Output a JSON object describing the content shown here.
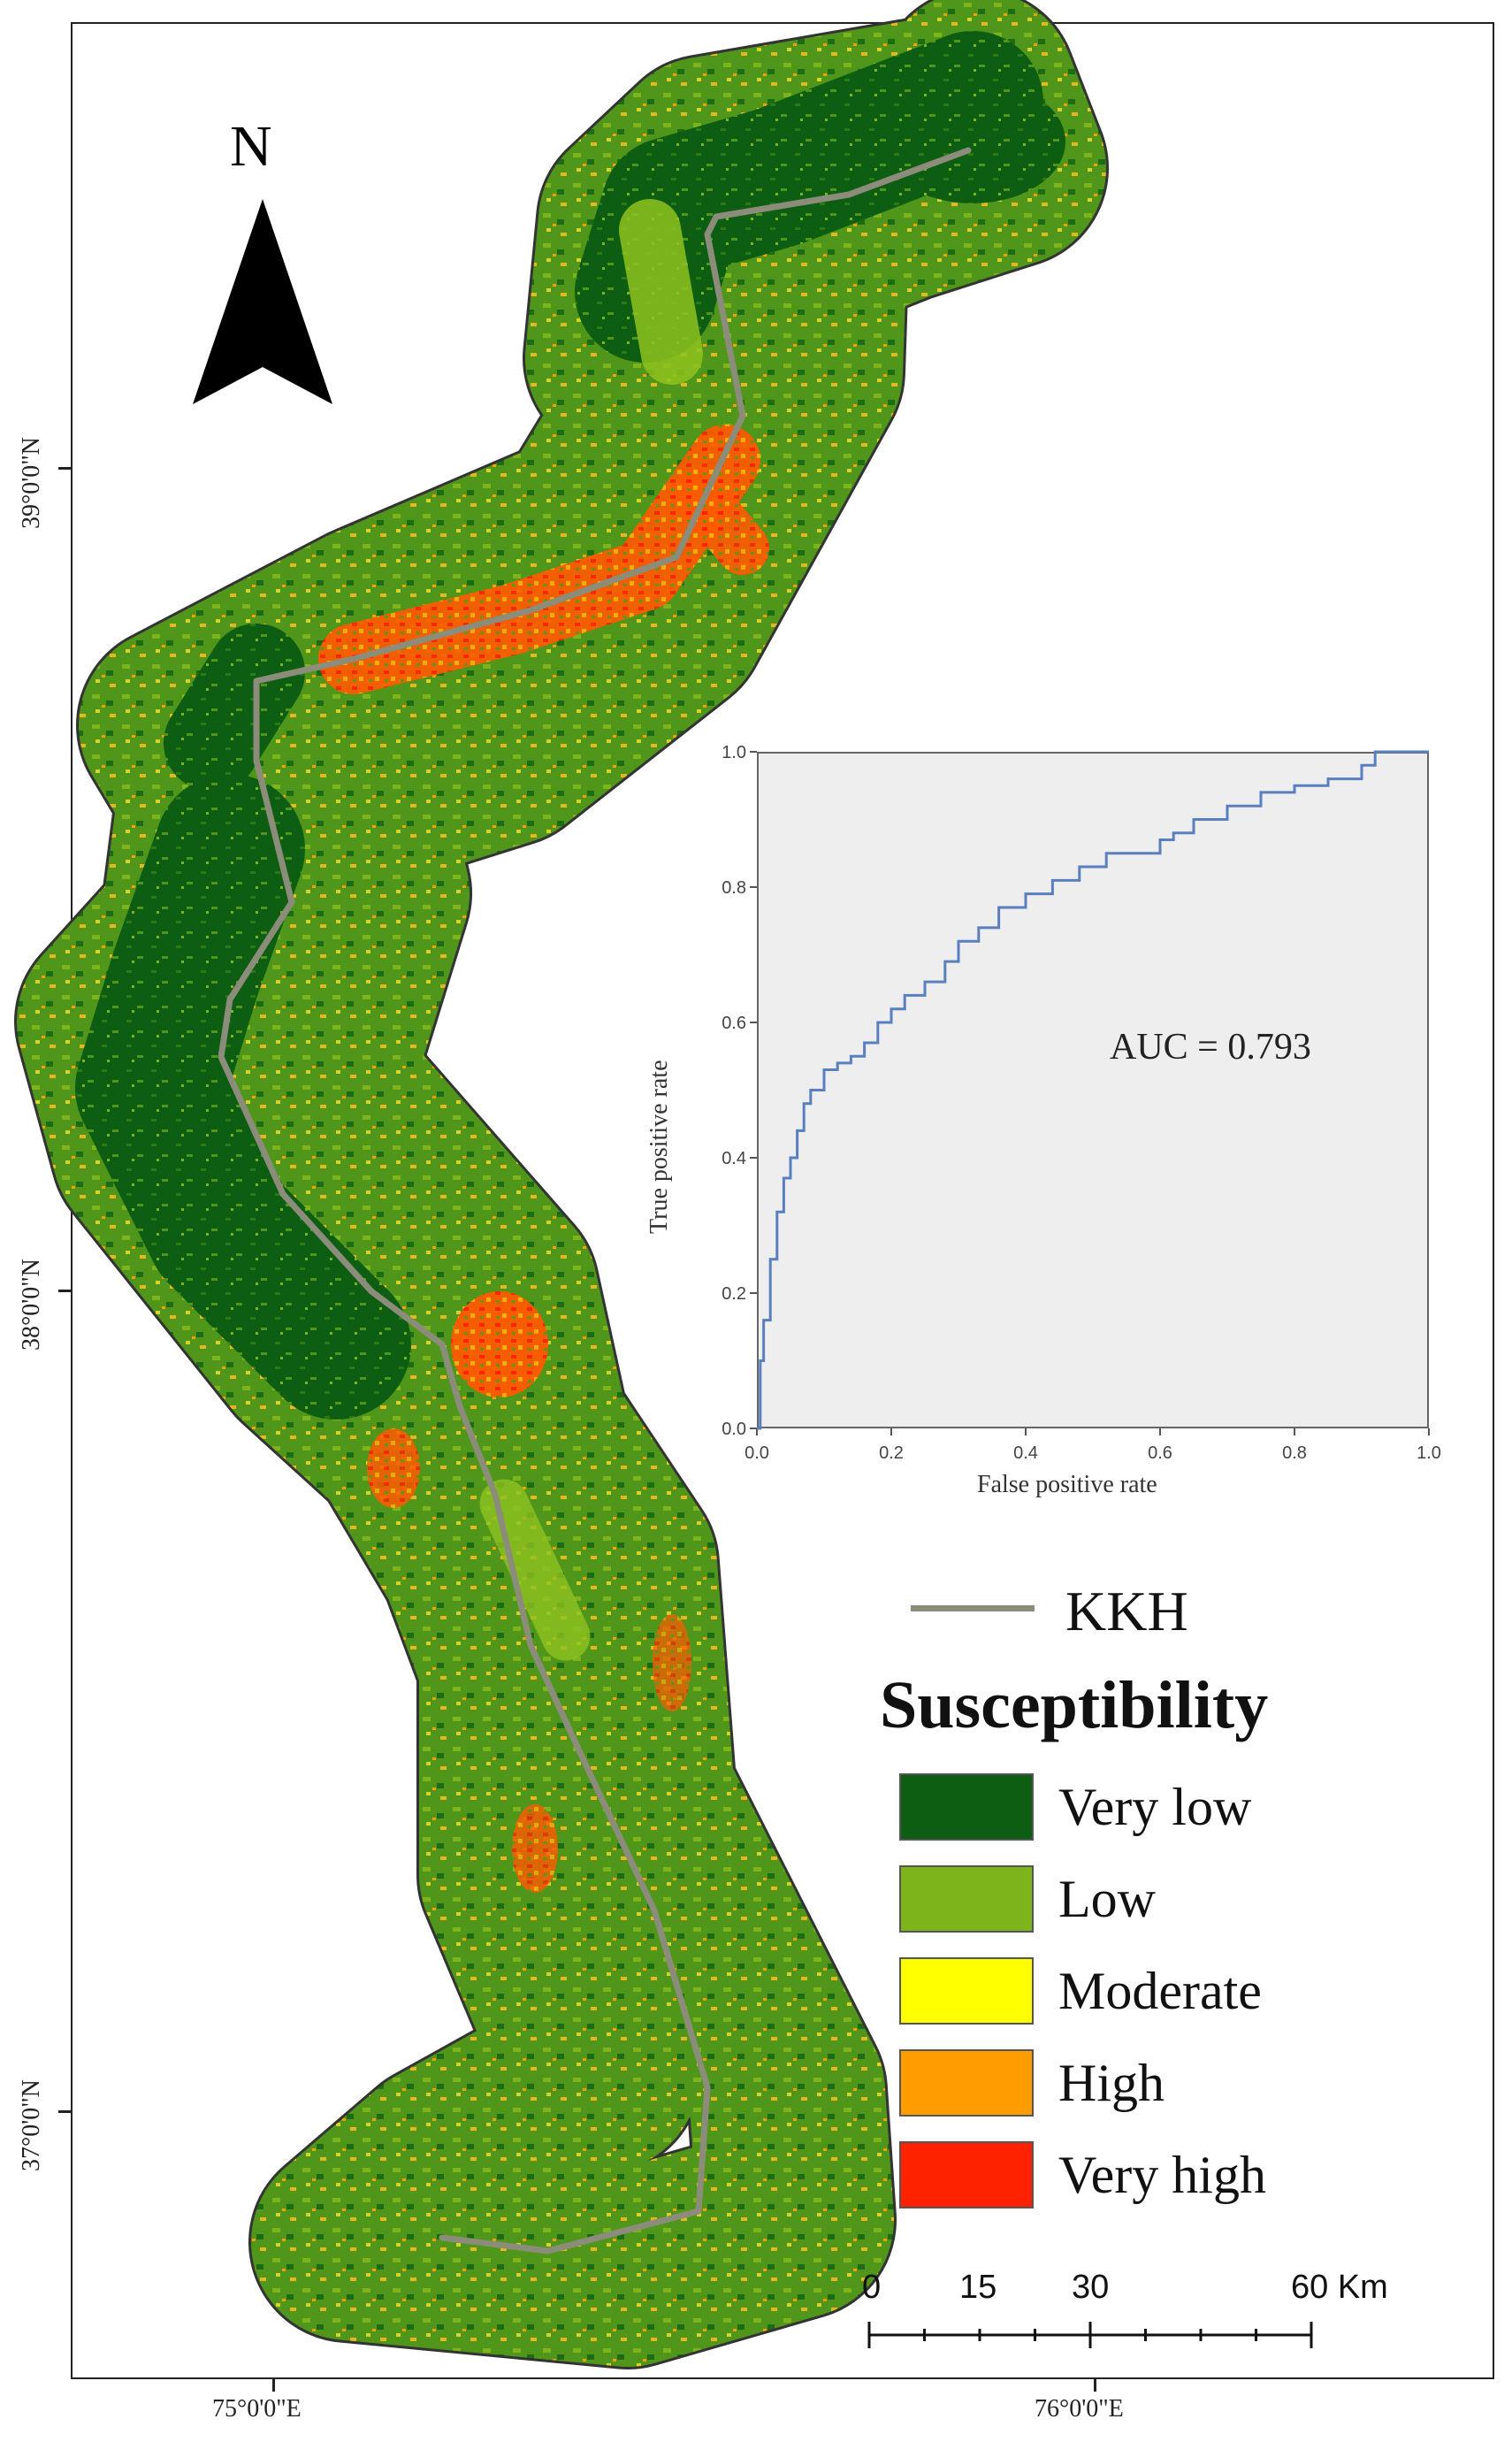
{
  "north_arrow": {
    "letter": "N"
  },
  "axes": {
    "latitude_labels": [
      "39°0'0\"N",
      "38°0'0\"N",
      "37°0'0\"N"
    ],
    "longitude_labels": [
      "75°0'0\"E",
      "76°0'0\"E"
    ]
  },
  "inset_roc": {
    "ylabel": "True positive rate",
    "xlabel": "False positive rate",
    "x_ticks": [
      "0.0",
      "0.2",
      "0.4",
      "0.6",
      "0.8",
      "1.0"
    ],
    "y_ticks": [
      "0.0",
      "0.2",
      "0.4",
      "0.6",
      "0.8",
      "1.0"
    ],
    "auc_text": "AUC = 0.793"
  },
  "chart_data": {
    "type": "line",
    "xlabel": "False positive rate",
    "ylabel": "True positive rate",
    "xlim": [
      0,
      1
    ],
    "ylim": [
      0,
      1
    ],
    "series": [
      {
        "x": [
          0,
          0.005,
          0.01,
          0.02,
          0.03,
          0.04,
          0.05,
          0.06,
          0.07,
          0.08,
          0.1,
          0.12,
          0.14,
          0.16,
          0.18,
          0.2,
          0.22,
          0.25,
          0.28,
          0.3,
          0.33,
          0.36,
          0.4,
          0.44,
          0.48,
          0.52,
          0.56,
          0.6,
          0.62,
          0.65,
          0.7,
          0.75,
          0.8,
          0.85,
          0.9,
          0.92,
          1.0
        ],
        "y": [
          0,
          0.1,
          0.16,
          0.25,
          0.32,
          0.37,
          0.4,
          0.44,
          0.48,
          0.5,
          0.53,
          0.54,
          0.55,
          0.57,
          0.6,
          0.62,
          0.64,
          0.66,
          0.69,
          0.72,
          0.74,
          0.77,
          0.79,
          0.81,
          0.83,
          0.85,
          0.85,
          0.87,
          0.88,
          0.9,
          0.92,
          0.94,
          0.95,
          0.96,
          0.98,
          1.0,
          1.0
        ]
      }
    ],
    "annotation": "AUC = 0.793"
  },
  "legend": {
    "route_label": "KKH",
    "title": "Susceptibility",
    "classes": [
      {
        "label": "Very low",
        "color": "#0d5e12"
      },
      {
        "label": "Low",
        "color": "#7db41b"
      },
      {
        "label": "Moderate",
        "color": "#ffff00"
      },
      {
        "label": "High",
        "color": "#ff9d00"
      },
      {
        "label": "Very high",
        "color": "#ff2200"
      }
    ]
  },
  "scale_bar": {
    "labels": [
      "0",
      "15",
      "30",
      "60 Km"
    ]
  },
  "colors": {
    "route": "#8c8c7a",
    "roc_line": "#5a7fbf",
    "roc_background": "#eeeeef"
  }
}
